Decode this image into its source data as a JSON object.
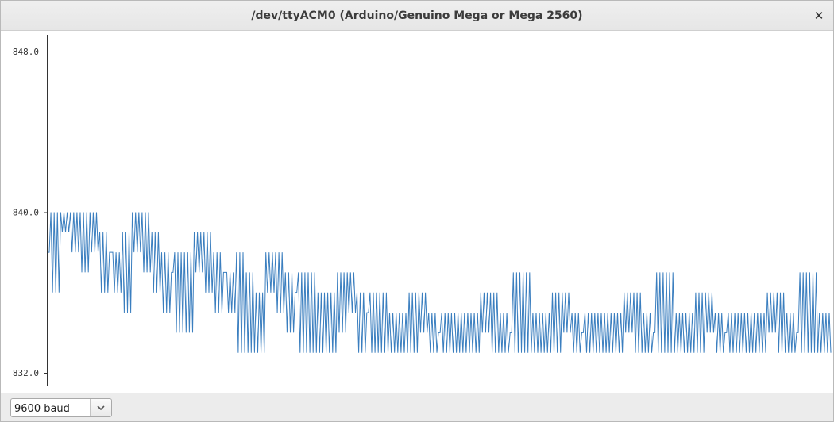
{
  "window": {
    "title": "/dev/ttyACM0 (Arduino/Genuino Mega or Mega 2560)",
    "close_icon": "close-icon"
  },
  "colors": {
    "series": "#3a7ebf",
    "axis": "#333333"
  },
  "plotter": {
    "baud_rate": "9600 baud",
    "dropdown_icon": "chevron-down-icon"
  },
  "chart_data": {
    "type": "line",
    "ylim": [
      831.2,
      848.8
    ],
    "yticks": [
      {
        "value": 848.0,
        "label": "848.0"
      },
      {
        "value": 840.0,
        "label": "840.0"
      },
      {
        "value": 832.0,
        "label": "832.0"
      }
    ],
    "grid": false,
    "legend": "none",
    "xlim": [
      0,
      493
    ],
    "series": [
      {
        "levels": [
          838,
          840,
          837,
          839,
          836,
          838,
          835,
          837,
          834,
          836,
          833,
          835
        ],
        "segment_length": 20,
        "segment_pattern": [
          [
            838,
            0
          ],
          [
            838,
            4
          ],
          [
            840,
            2
          ],
          [
            840,
            4
          ],
          [
            839,
            3
          ],
          [
            839,
            2
          ],
          [
            838,
            3
          ],
          [
            838,
            0
          ],
          [
            837,
            1
          ],
          [
            837,
            4
          ],
          [
            839,
            2
          ],
          [
            839,
            3
          ],
          [
            838,
            3
          ],
          [
            837,
            3
          ],
          [
            837,
            0
          ],
          [
            836,
            4
          ],
          [
            836,
            4
          ],
          [
            838,
            2
          ],
          [
            838,
            3
          ],
          [
            837,
            3
          ],
          [
            837,
            0
          ],
          [
            836,
            2
          ],
          [
            836,
            5
          ],
          [
            835,
            4
          ],
          [
            835,
            3
          ],
          [
            837,
            2
          ],
          [
            837,
            3
          ],
          [
            836,
            3
          ],
          [
            836,
            0
          ],
          [
            835,
            4
          ],
          [
            835,
            6
          ],
          [
            834,
            4
          ],
          [
            834,
            4
          ],
          [
            836,
            3
          ],
          [
            836,
            2
          ],
          [
            835,
            3
          ],
          [
            835,
            0
          ],
          [
            834,
            4
          ],
          [
            834,
            6
          ],
          [
            833,
            4
          ],
          [
            833,
            4
          ],
          [
            835,
            3
          ],
          [
            835,
            2
          ],
          [
            834,
            3
          ],
          [
            834,
            0
          ],
          [
            833,
            4
          ],
          [
            833,
            6
          ],
          [
            834,
            3
          ],
          [
            834,
            2
          ],
          [
            835,
            2
          ],
          [
            835,
            3
          ],
          [
            834,
            3
          ],
          [
            834,
            0
          ],
          [
            835,
            4
          ],
          [
            835,
            6
          ],
          [
            833,
            4
          ],
          [
            833,
            4
          ],
          [
            835,
            3
          ],
          [
            835,
            2
          ],
          [
            834,
            3
          ],
          [
            834,
            0
          ],
          [
            833,
            4
          ],
          [
            833,
            6
          ],
          [
            834,
            3
          ],
          [
            834,
            2
          ],
          [
            835,
            2
          ],
          [
            835,
            3
          ],
          [
            834,
            3
          ],
          [
            834,
            0
          ],
          [
            835,
            4
          ],
          [
            835,
            6
          ],
          [
            833,
            4
          ],
          [
            833,
            4
          ],
          [
            835,
            3
          ],
          [
            835,
            2
          ],
          [
            834,
            3
          ],
          [
            834,
            0
          ],
          [
            833,
            4
          ],
          [
            833,
            6
          ],
          [
            834,
            3
          ],
          [
            834,
            2
          ],
          [
            835,
            2
          ],
          [
            835,
            3
          ],
          [
            834,
            3
          ],
          [
            834,
            0
          ],
          [
            835,
            4
          ],
          [
            835,
            6
          ],
          [
            833,
            4
          ],
          [
            833,
            4
          ],
          [
            835,
            3
          ],
          [
            835,
            2
          ],
          [
            834,
            3
          ],
          [
            834,
            0
          ],
          [
            833,
            4
          ],
          [
            833,
            6
          ],
          [
            834,
            3
          ],
          [
            834,
            2
          ],
          [
            835,
            2
          ],
          [
            835,
            3
          ],
          [
            834,
            3
          ],
          [
            834,
            0
          ],
          [
            835,
            4
          ],
          [
            835,
            6
          ],
          [
            833,
            4
          ],
          [
            833,
            4
          ],
          [
            835,
            3
          ],
          [
            835,
            2
          ],
          [
            834,
            3
          ],
          [
            834,
            0
          ],
          [
            833,
            4
          ],
          [
            833,
            6
          ],
          [
            834,
            3
          ],
          [
            834,
            2
          ],
          [
            835,
            2
          ],
          [
            835,
            3
          ],
          [
            834,
            3
          ],
          [
            834,
            0
          ],
          [
            835,
            3
          ],
          [
            835,
            4
          ],
          [
            836,
            3
          ],
          [
            836,
            4
          ],
          [
            837,
            3
          ],
          [
            837,
            2
          ],
          [
            836,
            3
          ],
          [
            836,
            0
          ],
          [
            837,
            4
          ],
          [
            837,
            6
          ],
          [
            838,
            4
          ],
          [
            838,
            4
          ],
          [
            837,
            3
          ],
          [
            837,
            2
          ],
          [
            838,
            3
          ],
          [
            838,
            0
          ],
          [
            839,
            4
          ],
          [
            839,
            6
          ],
          [
            840,
            4
          ],
          [
            840,
            4
          ],
          [
            838,
            3
          ],
          [
            838,
            2
          ],
          [
            839,
            3
          ],
          [
            839,
            0
          ],
          [
            840,
            4
          ],
          [
            840,
            6
          ],
          [
            838,
            4
          ],
          [
            838,
            4
          ],
          [
            840,
            3
          ],
          [
            840,
            2
          ],
          [
            839,
            3
          ],
          [
            839,
            0
          ],
          [
            838,
            4
          ],
          [
            838,
            6
          ],
          [
            840,
            4
          ],
          [
            840,
            4
          ],
          [
            839,
            3
          ],
          [
            839,
            2
          ],
          [
            838,
            3
          ],
          [
            838,
            0
          ],
          [
            840,
            4
          ],
          [
            840,
            6
          ],
          [
            838,
            4
          ],
          [
            838,
            4
          ],
          [
            840,
            3
          ],
          [
            840,
            2
          ],
          [
            839,
            3
          ],
          [
            839,
            0
          ]
        ]
      }
    ]
  }
}
